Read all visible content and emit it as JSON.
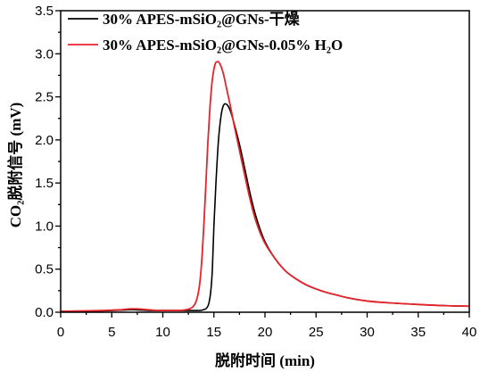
{
  "chart_data": {
    "type": "line",
    "title": "",
    "xlabel": "脱附时间 (min)",
    "ylabel": "CO₂脱附信号 (mV)",
    "xlim": [
      0,
      40
    ],
    "ylim": [
      0,
      3.5
    ],
    "xtick_labels": [
      "0",
      "5",
      "10",
      "15",
      "20",
      "25",
      "30",
      "35",
      "40"
    ],
    "ytick_labels": [
      "0.0",
      "0.5",
      "1.0",
      "1.5",
      "2.0",
      "2.5",
      "3.0",
      "3.5"
    ],
    "grid": false,
    "legend_position": "top-left",
    "series": [
      {
        "name": "30% APES-mSiO₂@GNs-干燥",
        "color": "#000000",
        "x": [
          0,
          2,
          4,
          5,
          6,
          7,
          8,
          9,
          10,
          11,
          12,
          13,
          13.5,
          14,
          14.3,
          14.5,
          14.7,
          14.85,
          15.0,
          15.2,
          15.45,
          15.7,
          15.9,
          16.1,
          16.35,
          16.6,
          17.0,
          17.5,
          18.0,
          18.5,
          19.0,
          19.5,
          20,
          21,
          22,
          23,
          24,
          25,
          26,
          27,
          28,
          30,
          32,
          35,
          38,
          40
        ],
        "y": [
          0.01,
          0.01,
          0.015,
          0.02,
          0.025,
          0.03,
          0.025,
          0.02,
          0.02,
          0.02,
          0.02,
          0.02,
          0.02,
          0.03,
          0.05,
          0.1,
          0.25,
          0.5,
          1.0,
          1.5,
          2.0,
          2.28,
          2.39,
          2.42,
          2.4,
          2.34,
          2.18,
          1.95,
          1.68,
          1.4,
          1.16,
          0.97,
          0.82,
          0.62,
          0.48,
          0.39,
          0.32,
          0.27,
          0.23,
          0.2,
          0.17,
          0.13,
          0.11,
          0.09,
          0.075,
          0.07
        ]
      },
      {
        "name": "30% APES-mSiO₂@GNs-0.05% H₂O",
        "color": "#e8232b",
        "x": [
          0,
          2,
          4,
          5,
          6,
          7,
          8,
          9,
          10,
          11,
          12,
          12.5,
          13,
          13.3,
          13.6,
          13.8,
          14.0,
          14.2,
          14.4,
          14.6,
          14.8,
          15.0,
          15.2,
          15.4,
          15.6,
          15.9,
          16.2,
          16.6,
          17.0,
          17.5,
          18.0,
          18.5,
          19.0,
          19.5,
          20,
          21,
          22,
          23,
          24,
          25,
          26,
          27,
          28,
          30,
          32,
          35,
          38,
          40
        ],
        "y": [
          0.01,
          0.015,
          0.02,
          0.025,
          0.03,
          0.04,
          0.035,
          0.025,
          0.02,
          0.02,
          0.025,
          0.035,
          0.07,
          0.14,
          0.32,
          0.58,
          0.98,
          1.45,
          1.95,
          2.35,
          2.65,
          2.82,
          2.9,
          2.91,
          2.88,
          2.78,
          2.62,
          2.4,
          2.16,
          1.88,
          1.6,
          1.33,
          1.1,
          0.93,
          0.8,
          0.62,
          0.48,
          0.39,
          0.32,
          0.27,
          0.23,
          0.2,
          0.17,
          0.13,
          0.11,
          0.09,
          0.075,
          0.07
        ]
      }
    ]
  }
}
